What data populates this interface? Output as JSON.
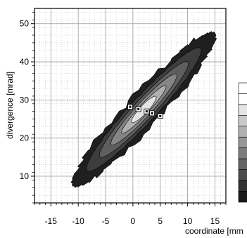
{
  "chart_data": {
    "type": "contour",
    "xlabel": "coordinate [mm",
    "ylabel": "divergence [mrad]",
    "xlim": [
      -18,
      17
    ],
    "ylim": [
      3,
      54
    ],
    "x_ticks": [
      -15,
      -10,
      -5,
      0,
      5,
      10,
      15
    ],
    "x_tick_labels": [
      "-15",
      "-10",
      "-5",
      "0",
      "5",
      "10",
      "15"
    ],
    "y_ticks": [
      10,
      20,
      30,
      40,
      50
    ],
    "y_tick_labels": [
      "10",
      "20",
      "30",
      "40",
      "50"
    ],
    "grid": true,
    "minor_grid": true,
    "distribution": {
      "center": [
        2,
        27.5
      ],
      "correlation_slope": -1.55,
      "levels": 6,
      "level_colors": [
        "#1f1f1f",
        "#3d3d3d",
        "#5e5e5e",
        "#858585",
        "#b0b0b0",
        "#e4e4e4"
      ],
      "outer_extent": {
        "coordinate_min": -12.5,
        "coordinate_max": 13.5,
        "divergence_min": 6,
        "divergence_max": 46
      }
    },
    "peak_markers": [
      {
        "x": -0.5,
        "y": 28.2
      },
      {
        "x": 1.0,
        "y": 27.6
      },
      {
        "x": 2.5,
        "y": 27.0
      },
      {
        "x": 3.5,
        "y": 26.5
      },
      {
        "x": 5.0,
        "y": 25.8
      }
    ],
    "colorbar": {
      "position": "right",
      "colors": [
        "#ffffff",
        "#ffffff",
        "#e4e4e4",
        "#c8c8c8",
        "#b0b0b0",
        "#979797",
        "#7d7d7d",
        "#646464",
        "#4b4b4b",
        "#323232",
        "#1a1a1a"
      ]
    }
  }
}
